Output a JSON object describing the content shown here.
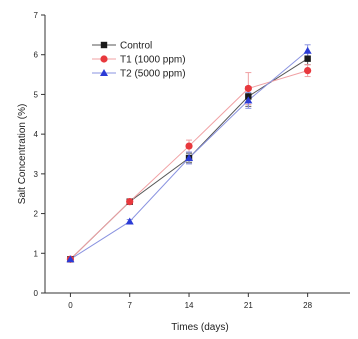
{
  "chart_data": {
    "type": "line",
    "title": "",
    "xlabel": "Times (days)",
    "ylabel": "Salt Concentration (%)",
    "x": [
      0,
      7,
      14,
      21,
      28
    ],
    "xlim": [
      -3,
      33
    ],
    "ylim": [
      0,
      7
    ],
    "x_ticks": [
      "0",
      "7",
      "14",
      "21",
      "28"
    ],
    "y_ticks": [
      "0",
      "1",
      "2",
      "3",
      "4",
      "5",
      "6",
      "7"
    ],
    "grid": false,
    "legend_position": "top-left",
    "series": [
      {
        "name": "Control",
        "marker": "square",
        "color": "#1a1a1a",
        "line_color": "#555555",
        "values": [
          0.85,
          2.3,
          3.4,
          4.95,
          5.9
        ],
        "errors": [
          0.05,
          0.06,
          0.12,
          0.25,
          0.15
        ]
      },
      {
        "name": "T1 (1000 ppm)",
        "marker": "circle",
        "color": "#e8383d",
        "line_color": "#f0a0a3",
        "values": [
          0.85,
          2.3,
          3.7,
          5.15,
          5.6
        ],
        "errors": [
          0.05,
          0.06,
          0.15,
          0.4,
          0.15
        ]
      },
      {
        "name": "T2 (5000 ppm)",
        "marker": "triangle",
        "color": "#2b3bd6",
        "line_color": "#8a93e0",
        "values": [
          0.85,
          1.8,
          3.4,
          4.85,
          6.1
        ],
        "errors": [
          0.05,
          0.05,
          0.15,
          0.2,
          0.15
        ]
      }
    ]
  }
}
